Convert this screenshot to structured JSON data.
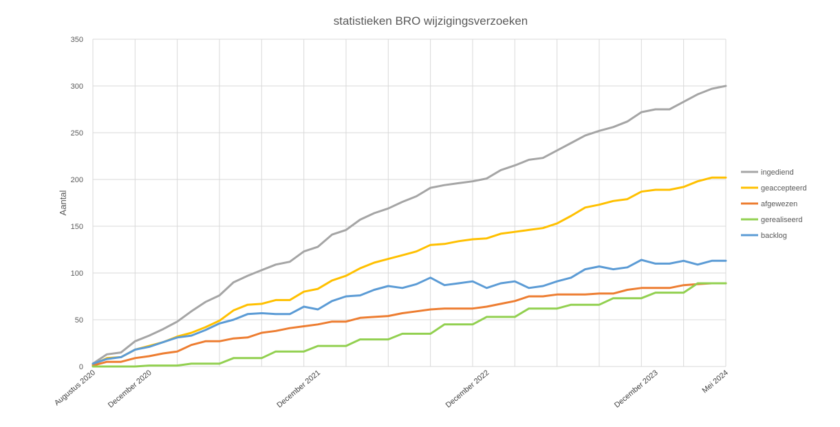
{
  "chart_data": {
    "type": "line",
    "title": "statistieken BRO wijzigingsverzoeken",
    "xlabel": "",
    "ylabel": "Aantal",
    "ylim": [
      0,
      350
    ],
    "yticks": [
      0,
      50,
      100,
      150,
      200,
      250,
      300,
      350
    ],
    "grid": true,
    "legend_position": "right",
    "point_count": 46,
    "x_labels": [
      {
        "index": 0,
        "label": "Augustus 2020"
      },
      {
        "index": 4,
        "label": "December 2020"
      },
      {
        "index": 16,
        "label": "December 2021"
      },
      {
        "index": 28,
        "label": "December 2022"
      },
      {
        "index": 40,
        "label": "December 2023"
      },
      {
        "index": 45,
        "label": "Mei 2024"
      }
    ],
    "series": [
      {
        "name": "ingediend",
        "color": "#A5A5A5",
        "values": [
          3,
          13,
          15,
          27,
          33,
          40,
          48,
          59,
          69,
          76,
          90,
          97,
          103,
          109,
          112,
          123,
          128,
          141,
          146,
          157,
          164,
          169,
          176,
          182,
          191,
          194,
          196,
          198,
          201,
          210,
          215,
          221,
          223,
          231,
          239,
          247,
          252,
          256,
          262,
          272,
          275,
          275,
          283,
          291,
          297,
          300
        ]
      },
      {
        "name": "geaccepteerd",
        "color": "#FFC000",
        "values": [
          2,
          9,
          10,
          18,
          22,
          26,
          32,
          36,
          42,
          49,
          60,
          66,
          67,
          71,
          71,
          80,
          83,
          92,
          97,
          105,
          111,
          115,
          119,
          123,
          130,
          131,
          134,
          136,
          137,
          142,
          144,
          146,
          148,
          153,
          161,
          170,
          173,
          177,
          179,
          187,
          189,
          189,
          192,
          198,
          202,
          202
        ]
      },
      {
        "name": "afgewezen",
        "color": "#ED7D31",
        "values": [
          1,
          5,
          5,
          9,
          11,
          14,
          16,
          23,
          27,
          27,
          30,
          31,
          36,
          38,
          41,
          43,
          45,
          48,
          48,
          52,
          53,
          54,
          57,
          59,
          61,
          62,
          62,
          62,
          64,
          67,
          70,
          75,
          75,
          77,
          77,
          77,
          78,
          78,
          82,
          84,
          84,
          84,
          87,
          88,
          89,
          89
        ]
      },
      {
        "name": "gerealiseerd",
        "color": "#92D050",
        "values": [
          0,
          0,
          0,
          0,
          1,
          1,
          1,
          3,
          3,
          3,
          9,
          9,
          9,
          16,
          16,
          16,
          22,
          22,
          22,
          29,
          29,
          29,
          35,
          35,
          35,
          45,
          45,
          45,
          53,
          53,
          53,
          62,
          62,
          62,
          66,
          66,
          66,
          73,
          73,
          73,
          79,
          79,
          79,
          89,
          89,
          89
        ]
      },
      {
        "name": "backlog",
        "color": "#5B9BD5",
        "values": [
          3,
          8,
          10,
          18,
          21,
          26,
          31,
          33,
          39,
          46,
          50,
          56,
          57,
          56,
          56,
          64,
          61,
          70,
          75,
          76,
          82,
          86,
          84,
          88,
          95,
          87,
          89,
          91,
          84,
          89,
          91,
          84,
          86,
          91,
          95,
          104,
          107,
          104,
          106,
          114,
          110,
          110,
          113,
          109,
          113,
          113
        ]
      }
    ]
  }
}
